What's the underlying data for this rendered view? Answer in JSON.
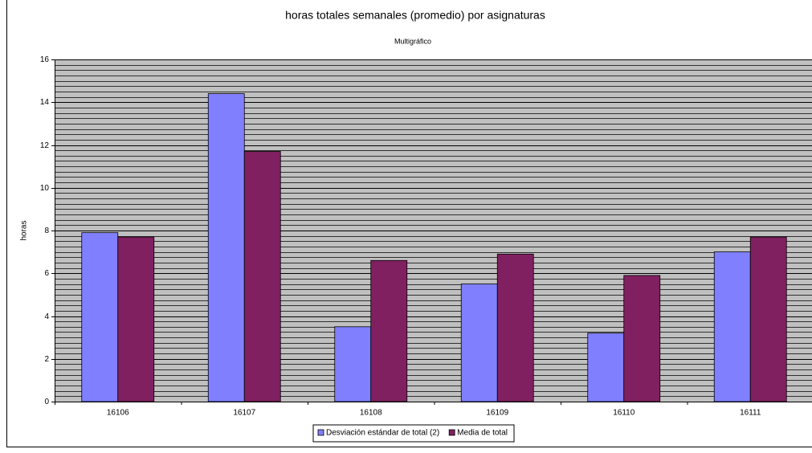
{
  "chart_data": {
    "type": "bar",
    "title": "horas totales semanales (promedio) por asignaturas",
    "subtitle": "Multigráfico",
    "y_label": "horas",
    "categories": [
      "16106",
      "16107",
      "16108",
      "16109",
      "16110",
      "16111"
    ],
    "series": [
      {
        "name": "Desviación estándar de total (2)",
        "color": "#8080ff",
        "values": [
          7.9,
          14.4,
          3.5,
          5.5,
          3.2,
          7.0
        ]
      },
      {
        "name": "Media de total",
        "color": "#802060",
        "values": [
          7.7,
          11.7,
          6.6,
          6.9,
          5.9,
          7.7
        ]
      }
    ],
    "ylim": [
      0,
      16
    ],
    "yticks": [
      0,
      2,
      4,
      6,
      8,
      10,
      12,
      14,
      16
    ],
    "grid": true,
    "grid_step": 0.25,
    "legend": "bottom"
  }
}
